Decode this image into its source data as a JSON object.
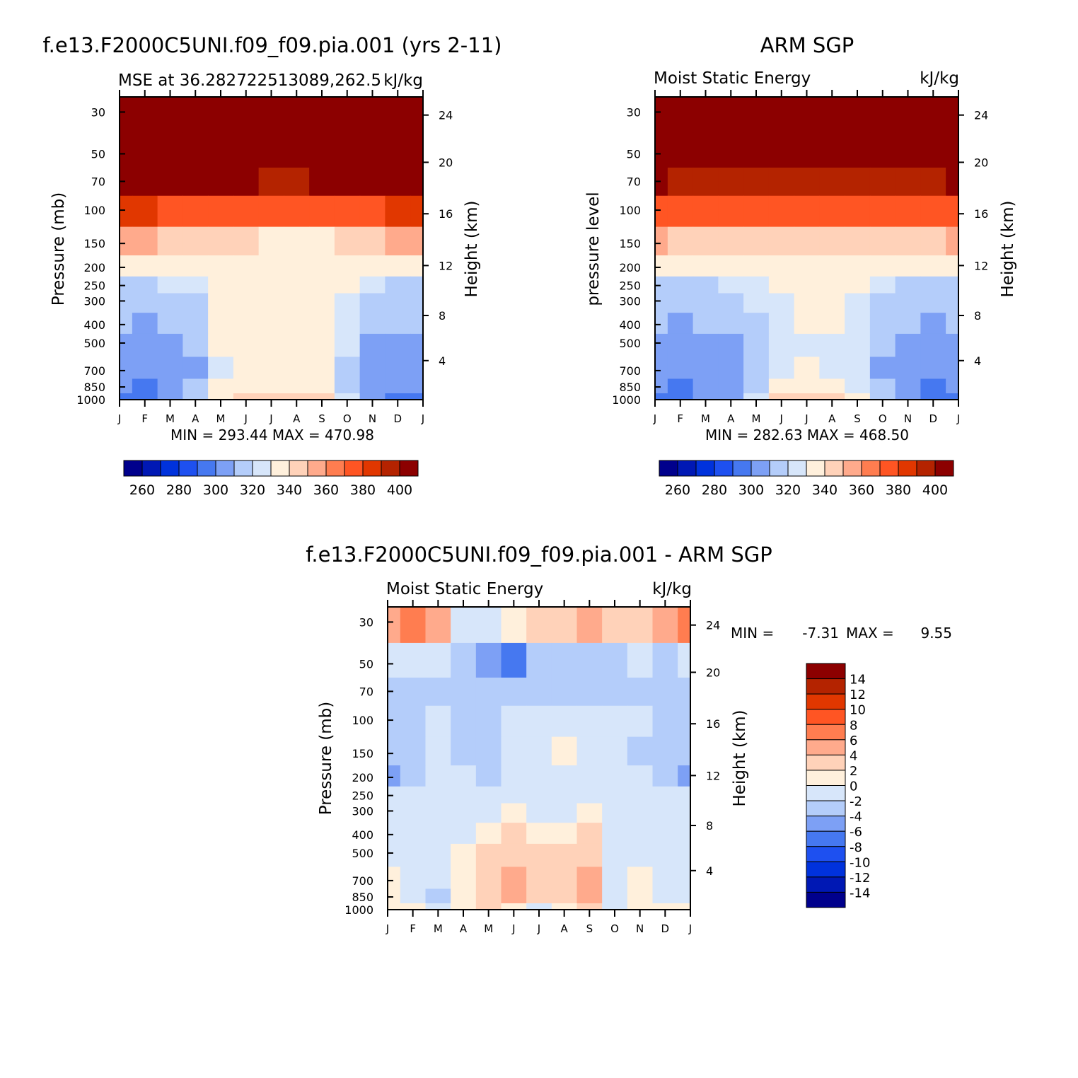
{
  "colors": {
    "abs_levels": [
      "#00008c",
      "#0018b4",
      "#0032dc",
      "#1e50f0",
      "#4678f0",
      "#7da0f5",
      "#b4cdfa",
      "#d7e6fa",
      "#fff0dc",
      "#ffd2b9",
      "#ffaa8c",
      "#ff7d50",
      "#ff5523",
      "#e13700",
      "#b42300",
      "#8c0000"
    ],
    "diff_levels": [
      "#00008c",
      "#0018b4",
      "#0032dc",
      "#1e50f0",
      "#4678f0",
      "#7da0f5",
      "#b4cdfa",
      "#d7e6fa",
      "#fff0dc",
      "#ffd2b9",
      "#ffaa8c",
      "#ff7d50",
      "#ff5523",
      "#e13700",
      "#b42300",
      "#8c0000"
    ]
  },
  "chart_data": [
    {
      "type": "heatmap",
      "id": "model",
      "title": "f.e13.F2000C5UNI.f09_f09.pia.001 (yrs 2-11)",
      "subtitle_left": "MSE at 36.282722513089,262.5",
      "subtitle_right": "kJ/kg",
      "ylabel": "Pressure (mb)",
      "ylabel_right": "Height (km)",
      "x_ticks": [
        "J",
        "F",
        "M",
        "A",
        "M",
        "J",
        "J",
        "A",
        "S",
        "O",
        "N",
        "D",
        "J"
      ],
      "p_levels": [
        30,
        50,
        70,
        100,
        150,
        200,
        250,
        300,
        400,
        500,
        700,
        850,
        1000
      ],
      "height_ticks": [
        24,
        20,
        16,
        12,
        8,
        4
      ],
      "months": [
        "J",
        "F",
        "M",
        "A",
        "M",
        "J",
        "J",
        "A",
        "S",
        "O",
        "N",
        "D",
        "J"
      ],
      "stats": "MIN = 293.44 MAX = 470.98",
      "colorbar_labels": [
        "260",
        "280",
        "300",
        "320",
        "340",
        "360",
        "380",
        "400"
      ],
      "values": [
        [
          471,
          471,
          471,
          471,
          471,
          471,
          471,
          471,
          471,
          471,
          471,
          471,
          471
        ],
        [
          439,
          440,
          439,
          438,
          436,
          433,
          430,
          430,
          431,
          434,
          437,
          439,
          439
        ],
        [
          409,
          407,
          405,
          404,
          402,
          400,
          399,
          399,
          400,
          402,
          405,
          407,
          409
        ],
        [
          382,
          380,
          378,
          378,
          378,
          377,
          376,
          376,
          376,
          377,
          379,
          381,
          382
        ],
        [
          352,
          350,
          346,
          346,
          345,
          340,
          338,
          338,
          339,
          342,
          346,
          350,
          352
        ],
        [
          330,
          330,
          331,
          333,
          336,
          338,
          338,
          338,
          337,
          335,
          332,
          330,
          330
        ],
        [
          319,
          319,
          320,
          323,
          335,
          338,
          338,
          338,
          338,
          330,
          321,
          319,
          319
        ],
        [
          314,
          313,
          314,
          318,
          334,
          338,
          338,
          338,
          338,
          328,
          316,
          314,
          314
        ],
        [
          311,
          309,
          310,
          314,
          332,
          338,
          338,
          338,
          338,
          324,
          312,
          310,
          311
        ],
        [
          308,
          306,
          306,
          311,
          330,
          336,
          338,
          338,
          338,
          321,
          308,
          306,
          308
        ],
        [
          305,
          302,
          301,
          308,
          326,
          338,
          338,
          338,
          338,
          318,
          305,
          303,
          305
        ],
        [
          300,
          299,
          300,
          312,
          333,
          338,
          338,
          338,
          338,
          318,
          302,
          301,
          300
        ],
        [
          296,
          298,
          301,
          318,
          338,
          340,
          340,
          340,
          340,
          320,
          300,
          297,
          296
        ]
      ]
    },
    {
      "type": "heatmap",
      "id": "obs",
      "title": "ARM SGP",
      "subtitle_left": "Moist Static Energy",
      "subtitle_right": "kJ/kg",
      "ylabel": "pressure level",
      "ylabel_right": "Height (km)",
      "x_ticks": [
        "J",
        "F",
        "M",
        "A",
        "M",
        "J",
        "J",
        "A",
        "S",
        "O",
        "N",
        "D",
        "J"
      ],
      "p_levels": [
        30,
        50,
        70,
        100,
        150,
        200,
        250,
        300,
        400,
        500,
        700,
        850,
        1000
      ],
      "height_ticks": [
        24,
        20,
        16,
        12,
        8,
        4
      ],
      "months": [
        "J",
        "F",
        "M",
        "A",
        "M",
        "J",
        "J",
        "A",
        "S",
        "O",
        "N",
        "D",
        "J"
      ],
      "stats": "MIN = 282.63 MAX = 468.50",
      "colorbar_labels": [
        "260",
        "280",
        "300",
        "320",
        "340",
        "360",
        "380",
        "400"
      ],
      "values": [
        [
          468,
          468,
          468,
          468,
          468,
          468,
          468,
          468,
          468,
          468,
          468,
          468,
          468
        ],
        [
          425,
          424,
          423,
          422,
          421,
          420,
          419,
          419,
          420,
          421,
          422,
          424,
          425
        ],
        [
          400,
          399,
          398,
          397,
          396,
          395,
          394,
          394,
          395,
          396,
          398,
          399,
          400
        ],
        [
          376,
          375,
          374,
          373,
          372,
          371,
          370,
          370,
          371,
          372,
          374,
          375,
          376
        ],
        [
          350,
          349,
          348,
          348,
          347,
          346,
          345,
          345,
          346,
          347,
          348,
          349,
          350
        ],
        [
          330,
          330,
          331,
          333,
          335,
          336,
          338,
          338,
          337,
          334,
          331,
          330,
          330
        ],
        [
          318,
          318,
          319,
          320,
          325,
          332,
          335,
          335,
          330,
          322,
          319,
          318,
          318
        ],
        [
          313,
          313,
          314,
          316,
          322,
          328,
          334,
          334,
          326,
          318,
          314,
          313,
          313
        ],
        [
          310,
          309,
          310,
          312,
          318,
          325,
          331,
          331,
          322,
          314,
          310,
          309,
          310
        ],
        [
          306,
          305,
          305,
          308,
          315,
          322,
          328,
          327,
          320,
          311,
          306,
          305,
          306
        ],
        [
          303,
          301,
          302,
          306,
          314,
          322,
          330,
          329,
          320,
          309,
          304,
          302,
          303
        ],
        [
          300,
          299,
          300,
          305,
          316,
          330,
          335,
          335,
          326,
          312,
          301,
          299,
          300
        ],
        [
          296,
          298,
          301,
          308,
          320,
          340,
          345,
          343,
          330,
          315,
          300,
          297,
          296
        ]
      ]
    },
    {
      "type": "heatmap",
      "id": "diff",
      "title": "f.e13.F2000C5UNI.f09_f09.pia.001 - ARM SGP",
      "subtitle_left": "Moist Static Energy",
      "subtitle_right": "kJ/kg",
      "ylabel": "Pressure (mb)",
      "ylabel_right": "Height (km)",
      "x_ticks": [
        "J",
        "F",
        "M",
        "A",
        "M",
        "J",
        "J",
        "A",
        "S",
        "O",
        "N",
        "D",
        "J"
      ],
      "p_levels": [
        30,
        50,
        70,
        100,
        150,
        200,
        250,
        300,
        400,
        500,
        700,
        850,
        1000
      ],
      "height_ticks": [
        24,
        20,
        16,
        12,
        8,
        4
      ],
      "months": [
        "J",
        "F",
        "M",
        "A",
        "M",
        "J",
        "J",
        "A",
        "S",
        "O",
        "N",
        "D",
        "J"
      ],
      "stats_label": "MIN =",
      "stats_min": "-7.31",
      "stats_max_label": "MAX =",
      "stats_max": "9.55",
      "colorbar_labels": [
        "14",
        "12",
        "10",
        "8",
        "6",
        "4",
        "2",
        "0",
        "-2",
        "-4",
        "-6",
        "-8",
        "-10",
        "-12",
        "-14"
      ],
      "values": [
        [
          5,
          6,
          5,
          -1,
          -1,
          1,
          2,
          3,
          4,
          3,
          2,
          5,
          6
        ],
        [
          -1,
          -2,
          -2,
          -3,
          -5,
          -7,
          -4,
          -3,
          -3,
          -3,
          -2,
          -3,
          -1
        ],
        [
          -3,
          -3,
          -3,
          -3,
          -4,
          -4,
          -3,
          -3,
          -3,
          -3,
          -3,
          -4,
          -3
        ],
        [
          -3,
          -3,
          -1,
          -3,
          -3,
          -2,
          -1,
          -1,
          -1,
          -1,
          -2,
          -3,
          -3
        ],
        [
          -4,
          -3,
          -1,
          -3,
          -4,
          -1,
          -1,
          1,
          -1,
          -1,
          -3,
          -3,
          -4
        ],
        [
          -5,
          -3,
          -1,
          -2,
          -3,
          -1,
          -1,
          -1,
          -1,
          -1,
          -2,
          -3,
          -5
        ],
        [
          -1,
          -1,
          -1,
          -1,
          -1,
          -1,
          -1,
          -1,
          -1,
          -1,
          -1,
          -1,
          -1
        ],
        [
          -1,
          -1,
          -1,
          -1,
          -1,
          1,
          -1,
          -1,
          1,
          -1,
          -1,
          -1,
          -1
        ],
        [
          -1,
          -1,
          -1,
          -1,
          1,
          2,
          1,
          1,
          2,
          -1,
          -1,
          -1,
          -1
        ],
        [
          -1,
          -1,
          -1,
          1,
          2,
          3,
          2,
          2,
          3,
          -1,
          -1,
          -1,
          -1
        ],
        [
          1,
          -1,
          -1,
          1,
          3,
          5,
          3,
          3,
          5,
          -1,
          1,
          -1,
          -1
        ],
        [
          1,
          -1,
          -3,
          1,
          3,
          4,
          2,
          3,
          4,
          -2,
          1,
          -1,
          -1
        ],
        [
          1,
          1,
          -1,
          1,
          2,
          1,
          -1,
          1,
          2,
          -1,
          1,
          1,
          1
        ]
      ]
    }
  ]
}
